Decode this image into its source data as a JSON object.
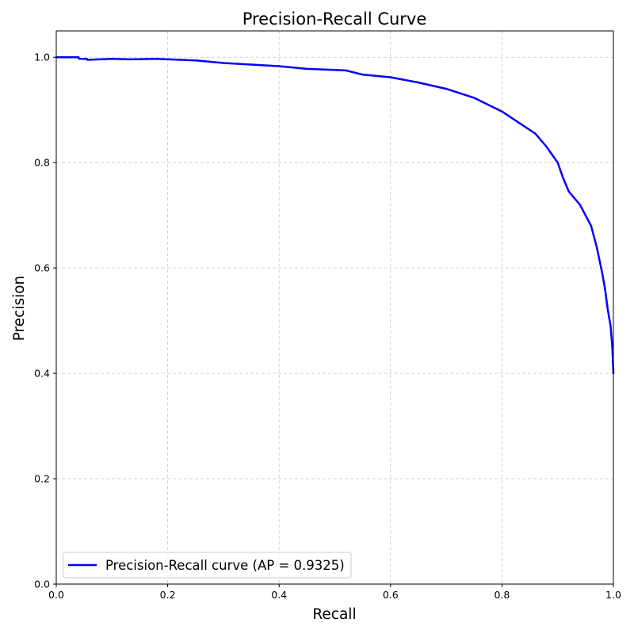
{
  "chart_data": {
    "type": "line",
    "title": "Precision-Recall Curve",
    "xlabel": "Recall",
    "ylabel": "Precision",
    "xlim": [
      0.0,
      1.0
    ],
    "ylim": [
      0.0,
      1.05
    ],
    "x_ticks": [
      0.0,
      0.2,
      0.4,
      0.6,
      0.8,
      1.0
    ],
    "y_ticks": [
      0.0,
      0.2,
      0.4,
      0.6,
      0.8,
      1.0
    ],
    "x_tick_labels": [
      "0.0",
      "0.2",
      "0.4",
      "0.6",
      "0.8",
      "1.0"
    ],
    "y_tick_labels": [
      "0.0",
      "0.2",
      "0.4",
      "0.6",
      "0.8",
      "1.0"
    ],
    "grid": true,
    "legend_position": "bottom-left",
    "series": [
      {
        "name": "Precision-Recall curve (AP = 0.9325)",
        "color": "#0000ff",
        "x": [
          0.0,
          0.04,
          0.041,
          0.055,
          0.056,
          0.1,
          0.13,
          0.18,
          0.25,
          0.3,
          0.35,
          0.4,
          0.45,
          0.5,
          0.52,
          0.55,
          0.6,
          0.65,
          0.7,
          0.75,
          0.8,
          0.83,
          0.86,
          0.88,
          0.9,
          0.91,
          0.92,
          0.94,
          0.95,
          0.96,
          0.97,
          0.98,
          0.985,
          0.99,
          0.995,
          0.998,
          1.0
        ],
        "y": [
          1.0,
          1.0,
          0.997,
          0.997,
          0.995,
          0.997,
          0.996,
          0.997,
          0.994,
          0.989,
          0.986,
          0.983,
          0.978,
          0.976,
          0.975,
          0.967,
          0.962,
          0.952,
          0.94,
          0.923,
          0.897,
          0.876,
          0.855,
          0.83,
          0.8,
          0.77,
          0.745,
          0.72,
          0.7,
          0.68,
          0.64,
          0.59,
          0.56,
          0.52,
          0.49,
          0.45,
          0.4
        ]
      }
    ]
  }
}
